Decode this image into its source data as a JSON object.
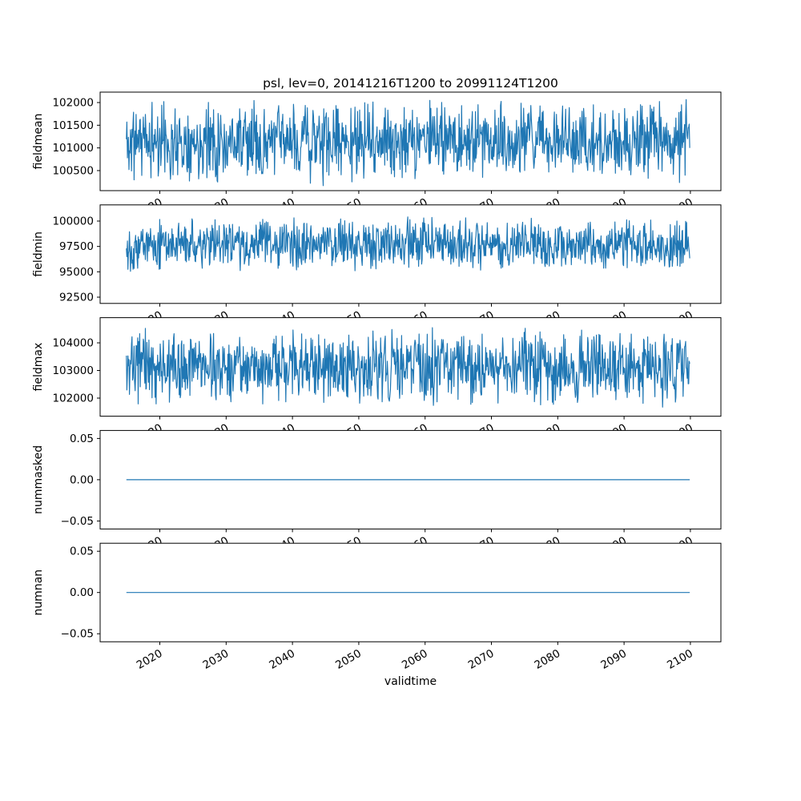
{
  "figure": {
    "title": "psl, lev=0, 20141216T1200 to 20991124T1200",
    "xlabel": "validtime",
    "line_color": "#1f77b4",
    "background": "#ffffff",
    "text_color": "#000000"
  },
  "chart_data": {
    "type": "line",
    "title": "psl, lev=0, 20141216T1200 to 20991124T1200",
    "xlabel": "validtime",
    "legend": "none",
    "grid": false,
    "x": {
      "lim": [
        2011.0,
        2104.6
      ],
      "ticks": [
        2020,
        2030,
        2040,
        2050,
        2060,
        2070,
        2080,
        2090,
        2100
      ],
      "tick_labels": [
        "2020",
        "2030",
        "2040",
        "2050",
        "2060",
        "2070",
        "2080",
        "2090",
        "2100"
      ],
      "data_start": 2014.96,
      "data_end": 2099.9
    },
    "subplots": [
      {
        "ylabel": "fieldmean",
        "ylim": [
          100058,
          102230
        ],
        "yticks": [
          100500,
          101000,
          101500,
          102000
        ],
        "ytick_labels": [
          "100500",
          "101000",
          "101500",
          "102000"
        ],
        "n_points": 1100,
        "series": {
          "name": "fieldmean",
          "mean": 101150,
          "spread": 950,
          "spike_prob": 0.004,
          "spike_mag": 700,
          "seed": 11
        }
      },
      {
        "ylabel": "fieldmin",
        "ylim": [
          91885,
          101593
        ],
        "yticks": [
          92500,
          95000,
          97500,
          100000
        ],
        "ytick_labels": [
          "92500",
          "95000",
          "97500",
          "100000"
        ],
        "n_points": 1100,
        "series": {
          "name": "fieldmin",
          "mean": 97700,
          "spread": 2800,
          "spike_prob": 0.004,
          "spike_mag": 2400,
          "seed": 22
        }
      },
      {
        "ylabel": "fieldmax",
        "ylim": [
          101345,
          104911
        ],
        "yticks": [
          102000,
          103000,
          104000
        ],
        "ytick_labels": [
          "102000",
          "103000",
          "104000"
        ],
        "n_points": 1100,
        "series": {
          "name": "fieldmax",
          "mean": 103100,
          "spread": 1500,
          "spike_prob": 0.003,
          "spike_mag": 900,
          "seed": 33
        }
      },
      {
        "ylabel": "nummasked",
        "ylim": [
          -0.0597,
          0.0597
        ],
        "yticks": [
          -0.05,
          0.0,
          0.05
        ],
        "ytick_labels": [
          "−0.05",
          "0.00",
          "0.05"
        ],
        "n_points": 200,
        "series": {
          "name": "nummasked",
          "constant": 0,
          "seed": 44
        }
      },
      {
        "ylabel": "numnan",
        "ylim": [
          -0.0597,
          0.0597
        ],
        "yticks": [
          -0.05,
          0.0,
          0.05
        ],
        "ytick_labels": [
          "−0.05",
          "0.00",
          "0.05"
        ],
        "n_points": 200,
        "series": {
          "name": "numnan",
          "constant": 0,
          "seed": 55
        }
      }
    ]
  }
}
